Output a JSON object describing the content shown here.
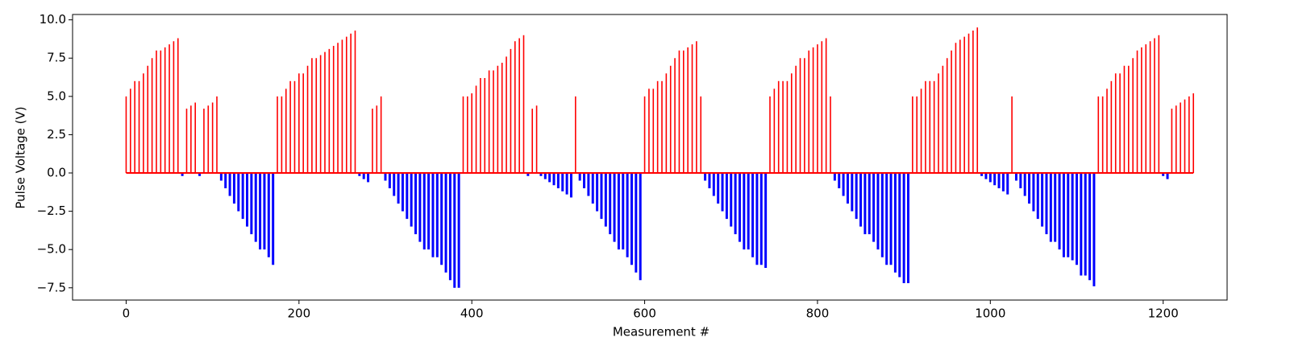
{
  "chart_data": {
    "type": "stem",
    "x_label": "Measurement #",
    "y_label": "Pulse Voltage (V)",
    "xlim": [
      -62,
      1274
    ],
    "ylim": [
      -8.3,
      10.35
    ],
    "xticks": [
      0,
      200,
      400,
      600,
      800,
      1000,
      1200
    ],
    "yticks": [
      {
        "value": -7.5,
        "label": "−7.5"
      },
      {
        "value": -5,
        "label": "−5.0"
      },
      {
        "value": -2.5,
        "label": "−2.5"
      },
      {
        "value": 0,
        "label": "0.0"
      },
      {
        "value": 2.5,
        "label": "2.5"
      },
      {
        "value": 5,
        "label": "5.0"
      },
      {
        "value": 7.5,
        "label": "7.5"
      },
      {
        "value": 10,
        "label": "10.0"
      }
    ],
    "baseline_color": "#ff0000",
    "series": [
      {
        "color": "#ff0000",
        "width": 1.6,
        "x": [
          0,
          5,
          10,
          15,
          20,
          25,
          30,
          35,
          40,
          45,
          50,
          55,
          60,
          70,
          75,
          80,
          90,
          95,
          100,
          105,
          175,
          180,
          185,
          190,
          195,
          200,
          205,
          210,
          215,
          220,
          225,
          230,
          235,
          240,
          245,
          250,
          255,
          260,
          265,
          285,
          290,
          295,
          390,
          395,
          400,
          405,
          410,
          415,
          420,
          425,
          430,
          435,
          440,
          445,
          450,
          455,
          460,
          470,
          475,
          520,
          600,
          605,
          610,
          615,
          620,
          625,
          630,
          635,
          640,
          645,
          650,
          655,
          660,
          665,
          745,
          750,
          755,
          760,
          765,
          770,
          775,
          780,
          785,
          790,
          795,
          800,
          805,
          810,
          815,
          910,
          915,
          920,
          925,
          930,
          935,
          940,
          945,
          950,
          955,
          960,
          965,
          970,
          975,
          980,
          985,
          1025,
          1125,
          1130,
          1135,
          1140,
          1145,
          1150,
          1155,
          1160,
          1165,
          1170,
          1175,
          1180,
          1185,
          1190,
          1195,
          1210,
          1215,
          1220,
          1225,
          1230,
          1235
        ],
        "values": [
          5.0,
          5.5,
          6.0,
          6.0,
          6.5,
          7.0,
          7.5,
          8.0,
          8.0,
          8.2,
          8.4,
          8.6,
          8.8,
          4.2,
          4.4,
          4.6,
          4.2,
          4.4,
          4.6,
          5.0,
          5.0,
          5.0,
          5.5,
          6.0,
          6.0,
          6.5,
          6.5,
          7.0,
          7.5,
          7.5,
          7.7,
          7.9,
          8.1,
          8.3,
          8.5,
          8.7,
          8.9,
          9.1,
          9.3,
          4.2,
          4.4,
          5.0,
          5.0,
          5.0,
          5.2,
          5.7,
          6.2,
          6.2,
          6.7,
          6.7,
          7.0,
          7.2,
          7.6,
          8.1,
          8.6,
          8.8,
          9.0,
          4.2,
          4.4,
          5.0,
          5.0,
          5.5,
          5.5,
          6.0,
          6.0,
          6.5,
          7.0,
          7.5,
          8.0,
          8.0,
          8.2,
          8.4,
          8.6,
          5.0,
          5.0,
          5.5,
          6.0,
          6.0,
          6.0,
          6.5,
          7.0,
          7.5,
          7.5,
          8.0,
          8.2,
          8.4,
          8.6,
          8.8,
          5.0,
          5.0,
          5.0,
          5.5,
          6.0,
          6.0,
          6.0,
          6.5,
          7.0,
          7.5,
          8.0,
          8.5,
          8.7,
          8.9,
          9.1,
          9.3,
          9.5,
          5.0,
          5.0,
          5.0,
          5.5,
          6.0,
          6.5,
          6.5,
          7.0,
          7.0,
          7.5,
          8.0,
          8.2,
          8.4,
          8.6,
          8.8,
          9.0,
          4.2,
          4.4,
          4.6,
          4.8,
          5.0,
          5.2
        ]
      },
      {
        "color": "#0000ff",
        "width": 3,
        "x": [
          65,
          85,
          110,
          115,
          120,
          125,
          130,
          135,
          140,
          145,
          150,
          155,
          160,
          165,
          170,
          270,
          275,
          280,
          300,
          305,
          310,
          315,
          320,
          325,
          330,
          335,
          340,
          345,
          350,
          355,
          360,
          365,
          370,
          375,
          380,
          385,
          465,
          480,
          485,
          490,
          495,
          500,
          505,
          510,
          515,
          525,
          530,
          535,
          540,
          545,
          550,
          555,
          560,
          565,
          570,
          575,
          580,
          585,
          590,
          595,
          670,
          675,
          680,
          685,
          690,
          695,
          700,
          705,
          710,
          715,
          720,
          725,
          730,
          735,
          740,
          820,
          825,
          830,
          835,
          840,
          845,
          850,
          855,
          860,
          865,
          870,
          875,
          880,
          885,
          890,
          895,
          900,
          905,
          990,
          995,
          1000,
          1005,
          1010,
          1015,
          1020,
          1030,
          1035,
          1040,
          1045,
          1050,
          1055,
          1060,
          1065,
          1070,
          1075,
          1080,
          1085,
          1090,
          1095,
          1100,
          1105,
          1110,
          1115,
          1120,
          1200,
          1205
        ],
        "values": [
          -0.2,
          -0.2,
          -0.5,
          -1.0,
          -1.5,
          -2.0,
          -2.5,
          -3.0,
          -3.5,
          -4.0,
          -4.5,
          -5.0,
          -5.0,
          -5.5,
          -6.0,
          -0.2,
          -0.4,
          -0.6,
          -0.5,
          -1.0,
          -1.5,
          -2.0,
          -2.5,
          -3.0,
          -3.5,
          -4.0,
          -4.5,
          -5.0,
          -5.0,
          -5.5,
          -5.5,
          -6.0,
          -6.5,
          -7.0,
          -7.5,
          -7.5,
          -0.2,
          -0.2,
          -0.4,
          -0.6,
          -0.8,
          -1.0,
          -1.2,
          -1.4,
          -1.6,
          -0.5,
          -1.0,
          -1.5,
          -2.0,
          -2.5,
          -3.0,
          -3.5,
          -4.0,
          -4.5,
          -5.0,
          -5.0,
          -5.5,
          -6.0,
          -6.5,
          -7.0,
          -0.5,
          -1.0,
          -1.5,
          -2.0,
          -2.5,
          -3.0,
          -3.5,
          -4.0,
          -4.5,
          -5.0,
          -5.0,
          -5.5,
          -6.0,
          -6.0,
          -6.2,
          -0.5,
          -1.0,
          -1.5,
          -2.0,
          -2.5,
          -3.0,
          -3.5,
          -4.0,
          -4.0,
          -4.5,
          -5.0,
          -5.5,
          -6.0,
          -6.0,
          -6.5,
          -6.8,
          -7.2,
          -7.2,
          -0.2,
          -0.4,
          -0.6,
          -0.8,
          -1.0,
          -1.2,
          -1.4,
          -0.5,
          -1.0,
          -1.5,
          -2.0,
          -2.5,
          -3.0,
          -3.5,
          -4.0,
          -4.5,
          -4.5,
          -5.0,
          -5.5,
          -5.5,
          -5.7,
          -6.0,
          -6.7,
          -6.7,
          -7.0,
          -7.4,
          -0.2,
          -0.4
        ]
      }
    ]
  }
}
